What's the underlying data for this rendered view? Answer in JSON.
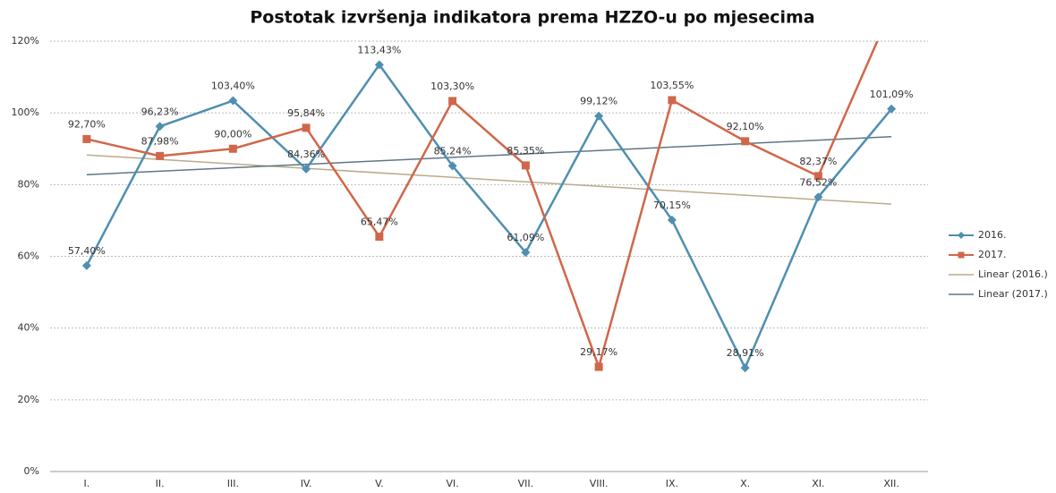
{
  "chart_data": {
    "type": "line",
    "title": "Postotak izvršenja indikatora prema HZZO-u po mjesecima",
    "categories": [
      "I.",
      "II.",
      "III.",
      "IV.",
      "V.",
      "VI.",
      "VII.",
      "VIII.",
      "IX.",
      "X.",
      "XI.",
      "XII."
    ],
    "series": [
      {
        "name": "2016.",
        "color": "#4f8fb0",
        "marker": "diamond",
        "values": [
          57.4,
          96.23,
          103.4,
          84.36,
          113.43,
          85.24,
          61.09,
          99.12,
          70.15,
          28.91,
          76.52,
          101.09
        ],
        "value_labels": [
          "57,40%",
          "96,23%",
          "103,40%",
          "84,36%",
          "113,43%",
          "85,24%",
          "61,09%",
          "99,12%",
          "70,15%",
          "28,91%",
          "76,52%",
          "101,09%"
        ]
      },
      {
        "name": "2017.",
        "color": "#d0674a",
        "marker": "square",
        "values": [
          92.7,
          87.98,
          90.0,
          95.84,
          65.47,
          103.3,
          85.35,
          29.17,
          103.55,
          92.1,
          82.37,
          129
        ],
        "value_labels": [
          "92,70%",
          "87,98%",
          "90,00%",
          "95,84%",
          "65,47%",
          "103,30%",
          "85,35%",
          "29,17%",
          "103,55%",
          "92,10%",
          "82,37%",
          null
        ]
      }
    ],
    "trendlines": [
      {
        "name": "Linear (2016.)",
        "color": "#b9ab8c"
      },
      {
        "name": "Linear (2017.)",
        "color": "#5d7787"
      }
    ],
    "ylim": [
      0,
      120
    ],
    "yticks": [
      {
        "value": 0,
        "label": "0%"
      },
      {
        "value": 20,
        "label": "20%"
      },
      {
        "value": 40,
        "label": "40%"
      },
      {
        "value": 60,
        "label": "60%"
      },
      {
        "value": 80,
        "label": "80%"
      },
      {
        "value": 100,
        "label": "100%"
      },
      {
        "value": 120,
        "label": "120%"
      }
    ],
    "grid": true,
    "legend": "right"
  }
}
